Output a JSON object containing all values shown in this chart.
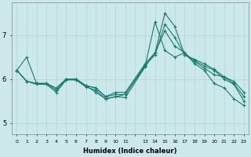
{
  "xlabel": "Humidex (Indice chaleur)",
  "background_color": "#cce8ea",
  "grid_color": "#afd4d8",
  "line_color": "#1a7a6e",
  "series": [
    {
      "x": [
        0,
        1,
        2,
        3,
        4,
        5,
        6,
        7,
        8,
        9,
        10,
        11,
        13,
        14,
        15,
        16,
        17,
        18,
        19,
        20,
        21,
        22,
        23
      ],
      "y": [
        6.2,
        6.5,
        5.9,
        5.9,
        5.8,
        6.0,
        6.0,
        5.85,
        5.7,
        5.55,
        5.6,
        5.65,
        6.3,
        7.3,
        6.65,
        6.5,
        6.6,
        6.35,
        6.2,
        5.9,
        5.8,
        5.55,
        5.4
      ]
    },
    {
      "x": [
        0,
        1,
        2,
        3,
        4,
        5,
        6,
        7,
        8,
        9,
        10,
        11,
        13,
        14,
        15,
        16,
        17,
        18,
        19,
        20,
        21,
        22,
        23
      ],
      "y": [
        6.2,
        5.95,
        5.9,
        5.9,
        5.75,
        6.0,
        6.0,
        5.85,
        5.8,
        5.6,
        5.7,
        5.7,
        6.35,
        6.6,
        7.1,
        6.75,
        6.6,
        6.4,
        6.25,
        6.1,
        6.05,
        5.95,
        5.7
      ]
    },
    {
      "x": [
        0,
        1,
        2,
        3,
        4,
        5,
        6,
        7,
        8,
        9,
        10,
        11,
        13,
        14,
        15,
        16,
        17,
        18,
        19,
        20,
        21,
        22,
        23
      ],
      "y": [
        6.2,
        5.95,
        5.9,
        5.9,
        5.75,
        6.0,
        6.0,
        5.85,
        5.8,
        5.6,
        5.65,
        5.65,
        6.32,
        6.55,
        7.25,
        6.95,
        6.55,
        6.45,
        6.35,
        6.22,
        6.05,
        5.9,
        5.6
      ]
    },
    {
      "x": [
        0,
        1,
        2,
        3,
        4,
        5,
        6,
        7,
        8,
        9,
        10,
        11,
        13,
        14,
        15,
        16,
        17,
        18,
        19,
        20,
        21,
        22,
        23
      ],
      "y": [
        6.2,
        5.95,
        5.88,
        5.88,
        5.7,
        5.98,
        5.98,
        5.82,
        5.75,
        5.55,
        5.6,
        5.58,
        6.28,
        6.6,
        7.5,
        7.2,
        6.55,
        6.42,
        6.3,
        6.2,
        6.0,
        5.88,
        5.5
      ]
    }
  ],
  "xtick_positions": [
    0,
    1,
    2,
    3,
    4,
    5,
    6,
    7,
    8,
    9,
    10,
    11,
    13,
    14,
    15,
    16,
    17,
    18,
    19,
    20,
    21,
    22,
    23
  ],
  "xtick_labels": [
    "0",
    "1",
    "2",
    "3",
    "4",
    "5",
    "6",
    "7",
    "8",
    "9",
    "10",
    "11",
    "13",
    "14",
    "15",
    "16",
    "17",
    "18",
    "19",
    "20",
    "21",
    "22",
    "23"
  ],
  "ylim": [
    4.75,
    7.75
  ],
  "yticks": [
    5,
    6,
    7
  ],
  "xlim": [
    -0.5,
    23.5
  ],
  "marker": "+",
  "markersize": 3,
  "linewidth": 0.8,
  "figsize": [
    3.2,
    2.0
  ],
  "dpi": 100
}
